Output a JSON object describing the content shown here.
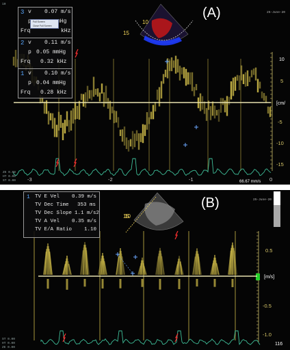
{
  "panelA": {
    "label": "(A)",
    "date": "25-June-20",
    "measurements": [
      {
        "index": "3",
        "v": "0.07 m/s",
        "p": "mHg",
        "frq": "kHz"
      },
      {
        "index": "2",
        "v": "0.11 m/s",
        "p": "0.05 mmHg",
        "frq": "0.32 kHz"
      },
      {
        "index": "1",
        "v": "0.10 m/s",
        "p": "0.04 mmHg",
        "frq": "0.28 kHz"
      }
    ],
    "field_labels": {
      "v": "v",
      "p": "p",
      "frq": "Frq"
    },
    "context_menu": [
      "Full Screen",
      "Close Full Screen"
    ],
    "scale_labels": [
      "10",
      "5",
      "[cm/",
      "-5",
      "-10",
      "-15"
    ],
    "time_labels": [
      "-3",
      "-2",
      "-1",
      "0"
    ],
    "speed": "66.67 mm/s",
    "sweep_markers": [
      "3",
      "2"
    ],
    "caliper_points": [
      "3",
      "2",
      "1"
    ],
    "sector_labels": [
      "10",
      "15"
    ],
    "side_info": [
      "ZE 0.00",
      "HT 0.00",
      "ST 0.00"
    ],
    "corner": "10"
  },
  "panelB": {
    "label": "(B)",
    "date": "25-June-20",
    "measurements": [
      {
        "index": "1",
        "name": "TV E Vel",
        "value": "0.39 m/s"
      },
      {
        "index": "",
        "name": "TV Dec Time",
        "value": "353 ms"
      },
      {
        "index": "",
        "name": "TV Dec Slope",
        "value": "1.1 m/s2"
      },
      {
        "index": "",
        "name": "TV A Vel",
        "value": "0.35 m/s"
      },
      {
        "index": "",
        "name": "TV E/A Ratio",
        "value": "1.10"
      }
    ],
    "scale_labels": [
      "0.5",
      "[m/s]",
      "-0.5",
      "-1.0"
    ],
    "caliper_points": [
      "1"
    ],
    "sector_labels": [
      "10",
      "15"
    ],
    "side_info": [
      "ST 0.00",
      "HT 0.00",
      "ZE 0.00"
    ],
    "corner_bottom": "116"
  },
  "colors": {
    "doppler": "#d4c04a",
    "ecg": "#3fbf9a",
    "caliper": "#6aa8ff",
    "marker": "#ff3030",
    "baseline": "#e8e2b0"
  }
}
